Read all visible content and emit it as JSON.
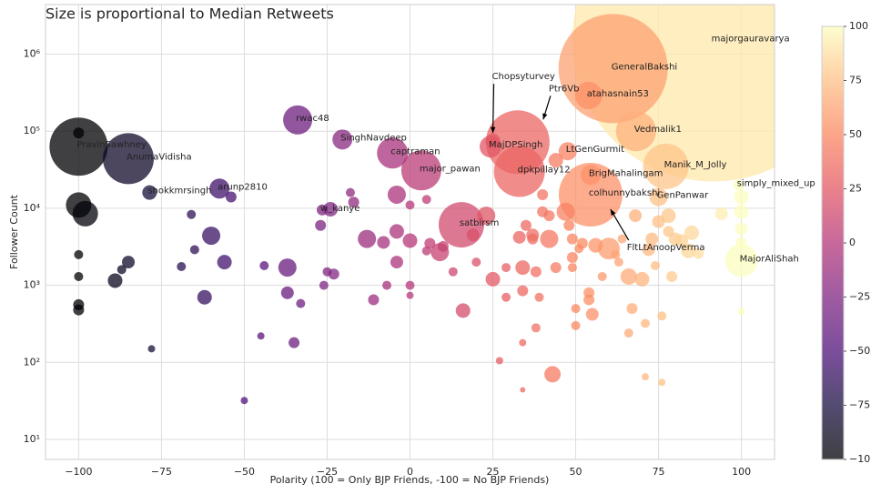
{
  "chart_data": {
    "type": "scatter",
    "title": "Size is proportional to Median Retweets",
    "xlabel": "Polarity (100 = Only BJP Friends, -100 = No BJP Friends)",
    "ylabel": "Follower Count",
    "xlim": [
      -110,
      110
    ],
    "ylim": [
      5.5,
      4400000
    ],
    "log_y": true,
    "grid": true,
    "cmap": "magma",
    "alpha": 0.75,
    "color_by": "x",
    "xticks": [
      {
        "value": -100,
        "label": "−100"
      },
      {
        "value": -75,
        "label": "−75"
      },
      {
        "value": -50,
        "label": "−50"
      },
      {
        "value": -25,
        "label": "−25"
      },
      0,
      25,
      50,
      75,
      100
    ],
    "yticks": [
      {
        "value": 10,
        "label": "10¹"
      },
      {
        "value": 100,
        "label": "10²"
      },
      {
        "value": 1000,
        "label": "10³"
      },
      {
        "value": 10000,
        "label": "10⁴"
      },
      {
        "value": 100000,
        "label": "10⁵"
      },
      {
        "value": 1000000,
        "label": "10⁶"
      }
    ],
    "colorbar": {
      "lim": [
        -100,
        100
      ],
      "ticks": [
        100,
        75,
        50,
        25,
        0,
        {
          "value": -25,
          "label": "−25"
        },
        {
          "value": -50,
          "label": "−50"
        },
        {
          "value": -75,
          "label": "−75"
        },
        {
          "value": -100,
          "label": "−100"
        }
      ]
    },
    "x": [
      91.5,
      61.3,
      53.9,
      68.2,
      24.3,
      32.5,
      47.6,
      33,
      54.5,
      77.2,
      54.5,
      75,
      99.2,
      100,
      15.5,
      3.4,
      -5.3,
      -20.4,
      -33.9,
      -26.5,
      -57.5,
      -78.6,
      -85,
      -100,
      -100,
      -98,
      -100,
      -100,
      -100,
      -100,
      -100,
      -89,
      -85,
      -87,
      -78,
      -69,
      -66,
      -65,
      -60,
      -62,
      -56,
      -54,
      -50,
      -44,
      -45,
      -37,
      -37,
      -35,
      -33,
      -27,
      -25,
      -26,
      -23,
      -24,
      -17,
      -18,
      -13,
      -11,
      -8,
      -7,
      -4,
      -4,
      -4,
      0,
      0,
      0,
      0,
      5,
      5,
      6,
      9,
      10,
      13,
      16,
      19,
      20,
      23,
      25,
      27,
      29,
      29,
      33,
      34,
      34,
      34,
      34,
      35,
      37,
      37,
      38,
      38,
      39,
      40,
      42,
      42,
      43,
      44,
      44,
      47,
      48,
      49,
      49,
      49,
      50,
      50,
      51,
      52,
      54,
      54,
      55,
      56,
      58,
      60,
      62,
      63,
      64,
      66,
      66,
      67,
      68,
      70,
      71,
      71,
      72,
      73,
      74,
      75,
      76,
      76,
      78,
      78,
      79,
      80,
      82,
      84,
      85,
      87,
      94,
      100,
      100,
      100,
      100,
      100,
      25,
      40
    ],
    "y": [
      1500000,
      650000,
      290000,
      100000,
      63000,
      72000,
      55000,
      30000,
      27000,
      35000,
      15000,
      14000,
      20000,
      2100,
      6100,
      31000,
      52000,
      78000,
      140000,
      9500,
      18000,
      16000,
      44000,
      63000,
      11000,
      8500,
      2500,
      1300,
      560,
      480,
      95000,
      1150,
      2000,
      1600,
      150,
      1750,
      8300,
      2900,
      4400,
      700,
      2000,
      14000,
      32,
      1800,
      220,
      1700,
      800,
      180,
      580,
      6000,
      1500,
      1000,
      1400,
      9700,
      12000,
      16000,
      4000,
      650,
      3600,
      1000,
      15000,
      2000,
      5000,
      3800,
      1000,
      740,
      11000,
      13000,
      2800,
      3500,
      2700,
      3200,
      1500,
      470,
      4500,
      2000,
      8000,
      1200,
      105,
      1700,
      700,
      4200,
      1700,
      850,
      180,
      44,
      6000,
      4500,
      4000,
      1500,
      280,
      700,
      15000,
      4000,
      8000,
      70,
      1700,
      42000,
      9000,
      6000,
      4000,
      2300,
      1700,
      300,
      500,
      3000,
      3500,
      800,
      650,
      420,
      3300,
      1300,
      3000,
      2500,
      2000,
      4000,
      1300,
      240,
      500,
      8000,
      1200,
      320,
      65,
      2900,
      4000,
      1800,
      6700,
      55,
      400,
      8000,
      5000,
      1300,
      4000,
      3800,
      2800,
      4800,
      2600,
      8500,
      9000,
      5400,
      3600,
      460,
      14000,
      75000,
      9000
    ],
    "sizes": [
      24000,
      3600,
      225,
      484,
      144,
      1225,
      100,
      784,
      120,
      625,
      1225,
      100,
      36,
      324,
      625,
      484,
      289,
      121,
      256,
      36,
      121,
      64,
      784,
      1024,
      196,
      196,
      25,
      25,
      36,
      36,
      36,
      64,
      49,
      25,
      16,
      25,
      25,
      25,
      100,
      64,
      64,
      36,
      16,
      25,
      16,
      100,
      49,
      36,
      25,
      36,
      25,
      25,
      36,
      64,
      36,
      25,
      100,
      36,
      49,
      25,
      100,
      49,
      64,
      64,
      25,
      16,
      25,
      25,
      25,
      36,
      100,
      36,
      25,
      64,
      49,
      25,
      100,
      64,
      16,
      25,
      25,
      49,
      64,
      36,
      16,
      9,
      36,
      49,
      36,
      36,
      25,
      25,
      36,
      100,
      36,
      81,
      36,
      64,
      100,
      36,
      36,
      36,
      25,
      25,
      25,
      25,
      36,
      36,
      36,
      49,
      64,
      25,
      144,
      25,
      25,
      25,
      81,
      25,
      36,
      49,
      64,
      25,
      16,
      49,
      49,
      25,
      49,
      16,
      25,
      64,
      36,
      36,
      49,
      49,
      64,
      64,
      36,
      49,
      64,
      49,
      36,
      16,
      64,
      64,
      36
    ],
    "labels": [
      "majorgauravarya",
      "GeneralBakshi",
      "atahasnain53",
      "Vedmalik1",
      "MajDPSingh",
      null,
      "LtGenGurmit",
      "dpkpillay12",
      "BrigMahalingam",
      "Manik_M_Jolly",
      "colhunnybakshi",
      "GenPanwar",
      "simply_mixed_up",
      "MajorAliShah",
      "satbirsm",
      "major_pawan",
      "captraman",
      "SinghNavdeep",
      "rwac48",
      "w_kanye",
      "arunp2810",
      "shokkmrsingh",
      "AnumaVidisha",
      "PravinSawhney",
      null,
      null,
      null,
      null,
      null,
      null,
      null,
      null,
      null,
      null,
      null,
      null,
      null,
      null,
      null,
      null,
      null,
      null,
      null,
      null,
      null,
      null,
      null,
      null,
      null,
      null,
      null,
      null,
      null,
      null,
      null,
      null,
      null,
      null,
      null,
      null,
      null,
      null,
      null,
      null,
      null,
      null,
      null,
      null,
      null,
      null,
      null,
      null,
      null,
      null,
      null,
      null,
      null,
      null,
      null,
      null,
      null,
      null,
      null,
      null,
      null,
      null,
      null,
      null,
      null,
      null,
      null,
      null,
      null,
      null,
      null,
      null,
      null,
      null,
      null,
      null,
      null,
      null,
      null,
      null,
      null,
      null,
      null,
      null,
      null,
      null,
      null,
      null,
      null,
      null,
      null,
      null,
      null,
      null,
      null,
      null,
      null,
      null,
      null,
      null,
      null,
      null,
      null,
      null,
      null,
      null,
      null,
      null,
      null,
      null,
      null,
      null,
      null,
      null,
      null,
      null,
      null,
      null,
      null
    ],
    "annotations": [
      {
        "text": "Chopsyturvey",
        "x": 25,
        "y": 95000
      },
      {
        "text": "Ptr6Vb",
        "x": 40.2,
        "y": 142000
      },
      {
        "text": "FltLtAnoopVerma",
        "x": 60.5,
        "y": 9700
      }
    ]
  }
}
